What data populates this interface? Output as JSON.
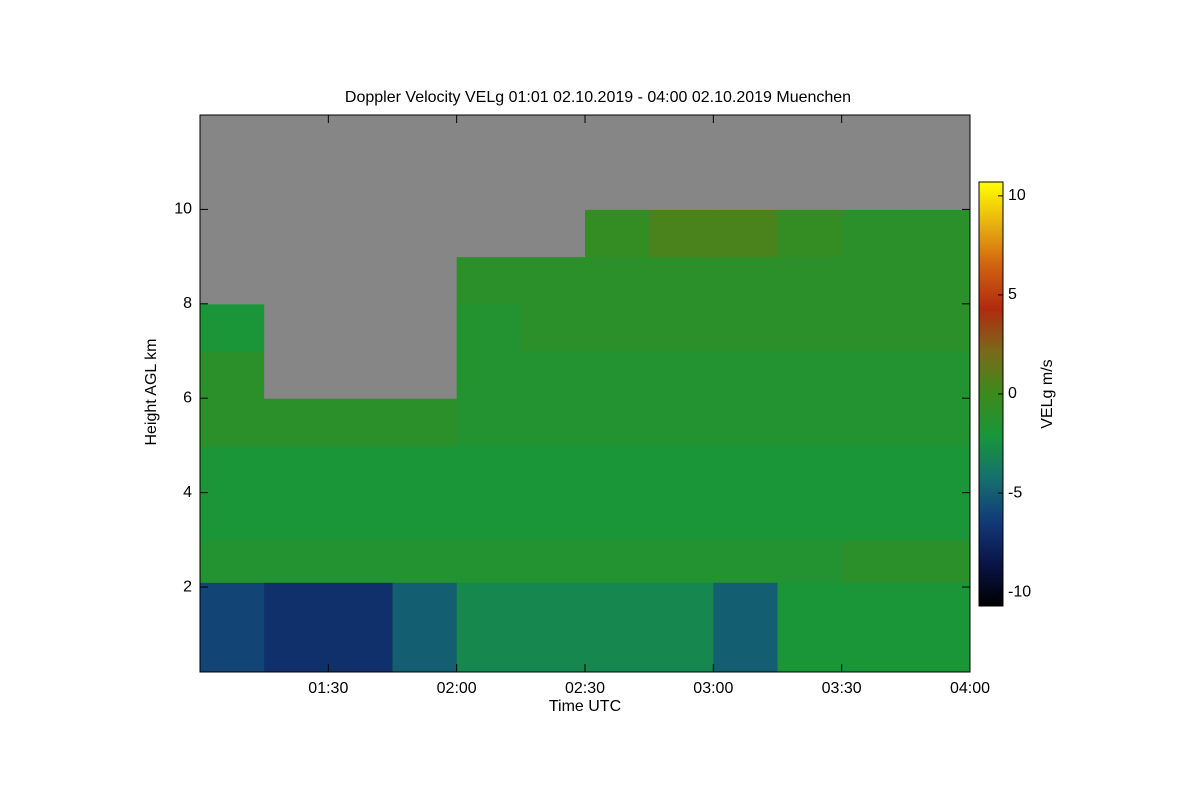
{
  "chart_data": {
    "type": "heatmap",
    "title": "Doppler Velocity VELg   01:01 02.10.2019 - 04:00 02.10.2019 Muenchen",
    "x_label": "Time UTC",
    "y_label": "Height AGL km",
    "colorbar_label": "VELg m/s",
    "xlim": [
      60,
      240
    ],
    "xticks": [
      {
        "value": 90,
        "label": "01:30"
      },
      {
        "value": 120,
        "label": "02:00"
      },
      {
        "value": 150,
        "label": "02:30"
      },
      {
        "value": 180,
        "label": "03:00"
      },
      {
        "value": 210,
        "label": "03:30"
      },
      {
        "value": 240,
        "label": "04:00"
      }
    ],
    "ylim": [
      0.2,
      12
    ],
    "yticks": [
      2,
      4,
      6,
      8,
      10
    ],
    "x_edges": [
      60,
      75,
      90,
      105,
      120,
      135,
      150,
      165,
      180,
      195,
      210,
      225,
      240
    ],
    "y_edges": [
      0.2,
      2.1,
      3,
      4,
      5,
      6,
      7,
      8,
      9,
      10,
      12
    ],
    "z": [
      [
        -6,
        -7,
        -7,
        -5,
        -3,
        -3,
        -3,
        -3,
        -5,
        -2,
        -2,
        -2
      ],
      [
        -1.5,
        -1.5,
        -1.5,
        -1.5,
        -1.5,
        -1.5,
        -1.5,
        -1.5,
        -1.5,
        -1.5,
        -1,
        -1
      ],
      [
        -2,
        -2,
        -2,
        -2,
        -2,
        -2,
        -2,
        -2,
        -2,
        -2,
        -2,
        -2
      ],
      [
        -2,
        -2,
        -2,
        -2,
        -2,
        -2,
        -2,
        -2,
        -2,
        -2,
        -2,
        -2
      ],
      [
        -1,
        -1,
        -1,
        -1,
        -1.5,
        -1.5,
        -1.5,
        -1.5,
        -1.5,
        -1.5,
        -1.5,
        -1.5
      ],
      [
        -1,
        null,
        null,
        null,
        -1.5,
        -1.5,
        -1.5,
        -1.5,
        -1.5,
        -1.5,
        -1.5,
        -1.5
      ],
      [
        -2,
        null,
        null,
        null,
        -1.5,
        -1,
        -1,
        -1,
        -1,
        -1,
        -1,
        -1
      ],
      [
        null,
        null,
        null,
        null,
        -1,
        -1,
        -1,
        -1,
        -1,
        -1,
        -1,
        -1
      ],
      [
        null,
        null,
        null,
        null,
        null,
        null,
        -0.5,
        0.5,
        0.5,
        -0.5,
        -1,
        -1
      ],
      [
        null,
        null,
        null,
        null,
        null,
        null,
        null,
        null,
        null,
        null,
        null,
        null
      ]
    ],
    "clim": [
      -10.7,
      10.7
    ],
    "cticks": [
      -10,
      -5,
      0,
      5,
      10
    ],
    "colormap": [
      "#000000",
      "#0a1448",
      "#123a78",
      "#14706e",
      "#18963a",
      "#3c8a1c",
      "#7a6a18",
      "#b02a10",
      "#d06010",
      "#e8b010",
      "#ffff00"
    ],
    "nodata_color": "#868686"
  }
}
